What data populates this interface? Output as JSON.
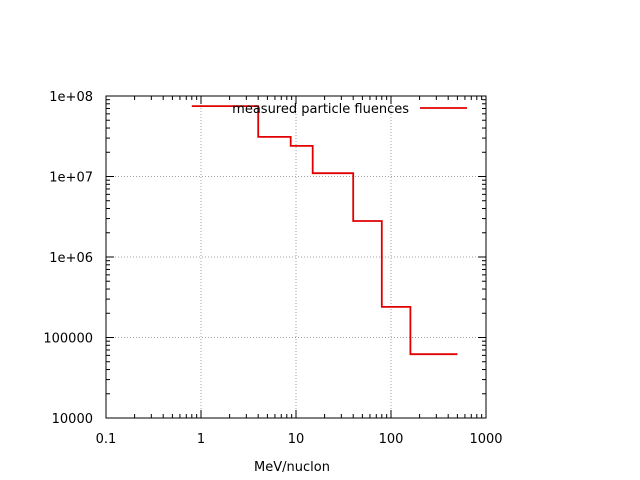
{
  "chart_data": {
    "type": "line",
    "step": true,
    "xlabel": "MeV/nuclon",
    "ylabel": "",
    "xscale": "log",
    "yscale": "log",
    "xlim": [
      0.1,
      1000
    ],
    "ylim": [
      10000,
      100000000
    ],
    "xticks": [
      {
        "value": 0.1,
        "label": "0.1"
      },
      {
        "value": 1,
        "label": "1"
      },
      {
        "value": 10,
        "label": "10"
      },
      {
        "value": 100,
        "label": "100"
      },
      {
        "value": 1000,
        "label": "1000"
      }
    ],
    "yticks": [
      {
        "value": 10000,
        "label": "10000"
      },
      {
        "value": 100000,
        "label": "100000"
      },
      {
        "value": 1000000,
        "label": "1e+06"
      },
      {
        "value": 10000000,
        "label": "1e+07"
      },
      {
        "value": 100000000,
        "label": "1e+08"
      }
    ],
    "grid": true,
    "legend_position": "top-right",
    "series": [
      {
        "name": "measured particle fluences",
        "color": "#e00000",
        "points": [
          {
            "x": 0.8,
            "y": 75000000
          },
          {
            "x": 4,
            "y": 75000000
          },
          {
            "x": 4,
            "y": 31000000
          },
          {
            "x": 8.8,
            "y": 31000000
          },
          {
            "x": 8.8,
            "y": 24000000
          },
          {
            "x": 15,
            "y": 24000000
          },
          {
            "x": 15,
            "y": 11000000
          },
          {
            "x": 40,
            "y": 11000000
          },
          {
            "x": 40,
            "y": 2800000
          },
          {
            "x": 80,
            "y": 2800000
          },
          {
            "x": 80,
            "y": 240000
          },
          {
            "x": 160,
            "y": 240000
          },
          {
            "x": 160,
            "y": 62000
          },
          {
            "x": 500,
            "y": 62000
          }
        ]
      }
    ]
  }
}
